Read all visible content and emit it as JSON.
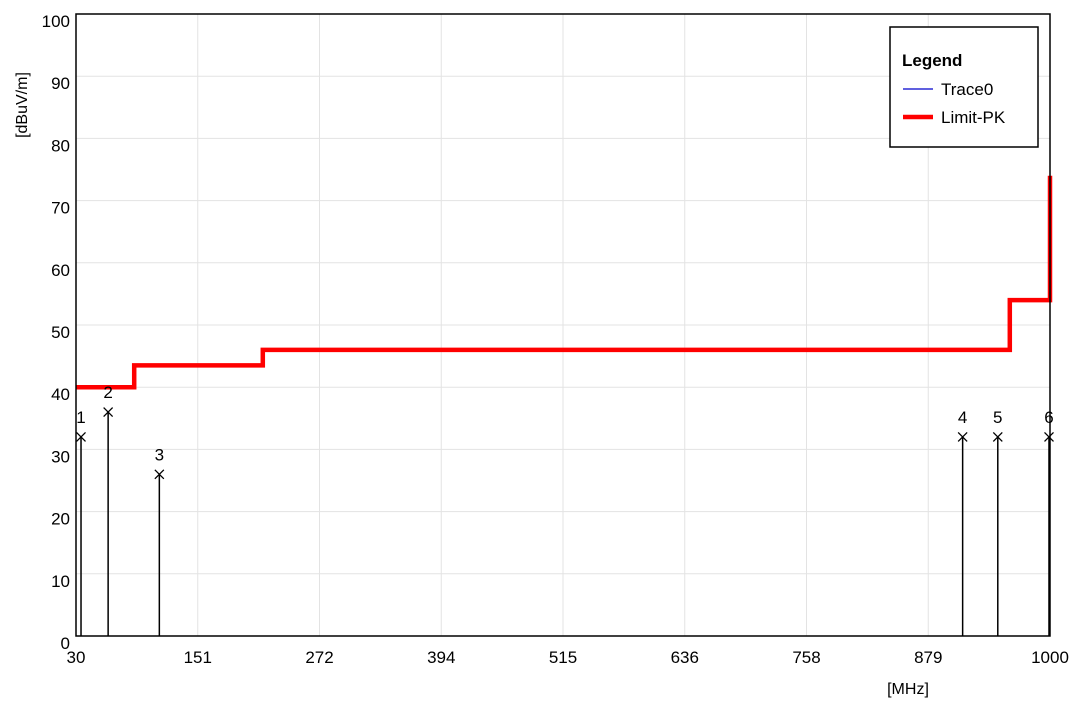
{
  "chart_data": {
    "type": "line",
    "xlabel": "[MHz]",
    "ylabel": "[dBuV/m]",
    "xlim": [
      30,
      1000
    ],
    "ylim": [
      0,
      100
    ],
    "x_ticks": [
      "30",
      "151",
      "272",
      "394",
      "515",
      "636",
      "758",
      "879",
      "1000"
    ],
    "y_ticks": [
      "0",
      "10",
      "20",
      "30",
      "40",
      "50",
      "60",
      "70",
      "80",
      "90",
      "100"
    ],
    "grid": true,
    "legend": {
      "title": "Legend",
      "position": "top-right",
      "entries": [
        {
          "name": "Trace0",
          "color": "#0000cc"
        },
        {
          "name": "Limit-PK",
          "color": "#ff0000"
        }
      ]
    },
    "series": [
      {
        "name": "Limit-PK",
        "color": "#ff0000",
        "points": [
          [
            30,
            40
          ],
          [
            88,
            40
          ],
          [
            88,
            43.5
          ],
          [
            216,
            43.5
          ],
          [
            216,
            46
          ],
          [
            960,
            46
          ],
          [
            960,
            54
          ],
          [
            1000,
            54
          ],
          [
            1000,
            74
          ]
        ]
      }
    ],
    "markers": [
      {
        "label": "1",
        "x": 35,
        "y": 32
      },
      {
        "label": "2",
        "x": 62,
        "y": 36
      },
      {
        "label": "3",
        "x": 113,
        "y": 26
      },
      {
        "label": "4",
        "x": 913,
        "y": 32
      },
      {
        "label": "5",
        "x": 948,
        "y": 32
      },
      {
        "label": "6",
        "x": 999,
        "y": 32
      }
    ]
  }
}
